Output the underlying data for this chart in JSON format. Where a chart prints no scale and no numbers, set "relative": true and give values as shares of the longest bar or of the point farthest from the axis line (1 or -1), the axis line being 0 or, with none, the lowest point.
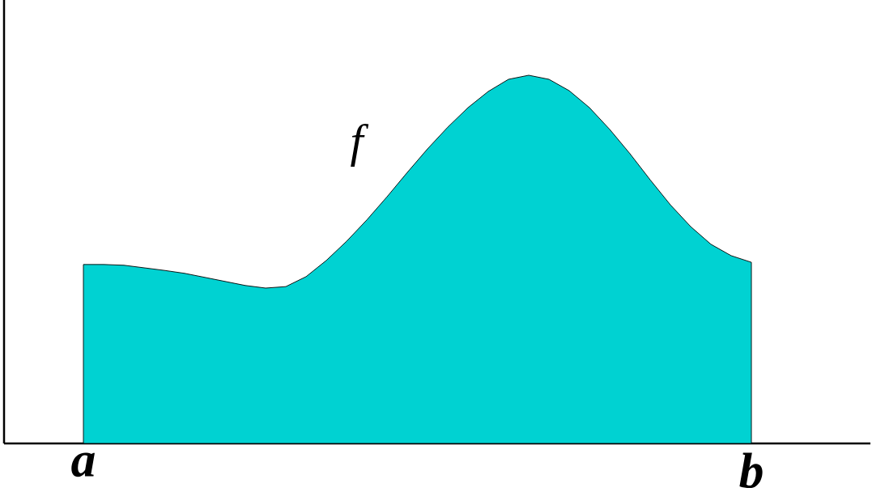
{
  "chart_data": {
    "type": "area",
    "relative": true,
    "color": "#00d2d2",
    "categories": [
      "a",
      null,
      null,
      null,
      null,
      null,
      null,
      null,
      null,
      null,
      null,
      null,
      null,
      null,
      null,
      null,
      null,
      null,
      null,
      null,
      null,
      null,
      null,
      null,
      null,
      null,
      null,
      null,
      null,
      null,
      null,
      null,
      null,
      "b"
    ],
    "values": [
      0.486,
      0.486,
      0.484,
      0.477,
      0.47,
      0.462,
      0.451,
      0.44,
      0.429,
      0.422,
      0.426,
      0.453,
      0.497,
      0.549,
      0.607,
      0.67,
      0.736,
      0.8,
      0.859,
      0.912,
      0.956,
      0.989,
      1,
      0.989,
      0.958,
      0.912,
      0.853,
      0.787,
      0.716,
      0.648,
      0.589,
      0.541,
      0.51,
      0.492
    ],
    "annotations": [
      "f"
    ]
  }
}
